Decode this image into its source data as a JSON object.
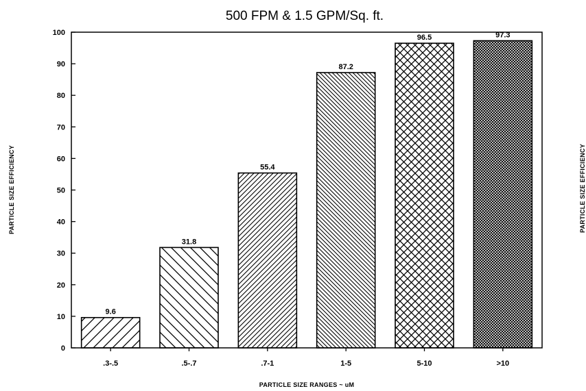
{
  "chart_data": {
    "type": "bar",
    "title": "500 FPM & 1.5 GPM/Sq. ft.",
    "xlabel": "PARTICLE SIZE RANGES ~ uM",
    "ylabel": "PARTICLE SIZE EFFICIENCY",
    "ylabel_right": "PARTICLE SIZE EFFICIENCY",
    "categories": [
      ".3-.5",
      ".5-.7",
      ".7-1",
      "1-5",
      "5-10",
      ">10"
    ],
    "values": [
      9.6,
      31.8,
      55.4,
      87.2,
      96.5,
      97.3
    ],
    "value_labels": [
      "9.6",
      "31.8",
      "55.4",
      "87.2",
      "96.5",
      "97.3"
    ],
    "ylim": [
      0,
      100
    ],
    "yticks": [
      0,
      10,
      20,
      30,
      40,
      50,
      60,
      70,
      80,
      90,
      100
    ],
    "grid": false,
    "legend": "none",
    "bar_fill": "hatched",
    "color": "#000000"
  }
}
